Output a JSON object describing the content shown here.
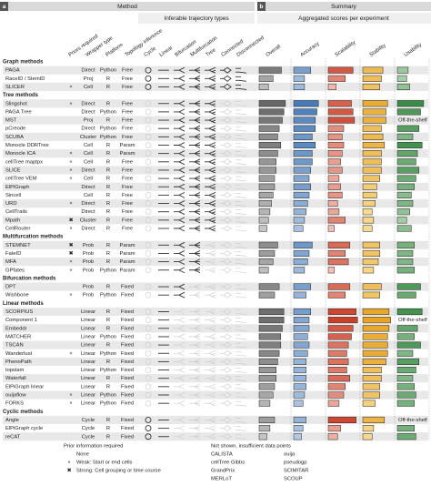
{
  "panels": {
    "a": {
      "label": "a",
      "title": "Method",
      "subtitle": "Inferable trajectory types"
    },
    "b": {
      "label": "b",
      "title": "Summary",
      "subtitle": "Aggregated scores per experiment"
    }
  },
  "columns": {
    "method": [
      "Priors required",
      "Wrapper type",
      "Platform",
      "Topology inference"
    ],
    "types": [
      "Cycle",
      "Linear",
      "Bifurcation",
      "Multifurcation",
      "Tree",
      "Connected",
      "Disconnected"
    ],
    "scores": [
      "Overall",
      "Accuracy",
      "Scalability",
      "Stability",
      "Usability"
    ]
  },
  "score_colors": [
    [
      "#ececec",
      "#505050"
    ],
    [
      "#e4edf8",
      "#1f5fa8"
    ],
    [
      "#fde3d9",
      "#c8361f"
    ],
    [
      "#fff5c8",
      "#e49a12"
    ],
    [
      "#e2f1dd",
      "#1d7a2d"
    ]
  ],
  "groups": [
    {
      "title": "Graph methods",
      "types": [
        1,
        1,
        1,
        1,
        1,
        1,
        1
      ],
      "rows": [
        {
          "name": "PAGA",
          "wrapper": "Direct",
          "platform": "Python",
          "topology": "Free",
          "scores": [
            0.72,
            0.55,
            0.8,
            0.65,
            0.35
          ]
        },
        {
          "name": "RaceID / StemID",
          "wrapper": "Proj",
          "platform": "R",
          "topology": "Free",
          "scores": [
            0.45,
            0.35,
            0.55,
            0.6,
            0.3
          ]
        },
        {
          "name": "SLICER",
          "prior": "×",
          "wrapper": "Cell",
          "platform": "R",
          "topology": "Free",
          "scores": [
            0.3,
            0.35,
            0.25,
            0.55,
            0.4
          ]
        }
      ]
    },
    {
      "title": "Tree methods",
      "types": [
        0,
        1,
        1,
        1,
        1,
        0,
        0
      ],
      "rows": [
        {
          "name": "Slingshot",
          "prior": "×",
          "wrapper": "Direct",
          "platform": "R",
          "topology": "Free",
          "scores": [
            0.85,
            0.8,
            0.75,
            0.8,
            0.85
          ]
        },
        {
          "name": "PAGA Tree",
          "wrapper": "Direct",
          "platform": "Python",
          "topology": "Free",
          "scores": [
            0.8,
            0.75,
            0.8,
            0.75,
            0.75
          ]
        },
        {
          "name": "MST",
          "wrapper": "Proj",
          "platform": "R",
          "topology": "Free",
          "scores": [
            0.75,
            0.7,
            0.85,
            0.75,
            null
          ],
          "note": "Off-the-shelf"
        },
        {
          "name": "pCreode",
          "wrapper": "Direct",
          "platform": "Python",
          "topology": "Free",
          "scores": [
            0.65,
            0.7,
            0.5,
            0.6,
            0.7
          ]
        },
        {
          "name": "SCUBA",
          "wrapper": "Cluster",
          "platform": "Python",
          "topology": "Free",
          "scores": [
            0.6,
            0.6,
            0.45,
            0.65,
            0.5
          ]
        },
        {
          "name": "Monocle DDRTree",
          "wrapper": "Cell",
          "platform": "R",
          "topology": "Param",
          "scores": [
            0.7,
            0.7,
            0.5,
            0.7,
            0.8
          ]
        },
        {
          "name": "Monocle ICA",
          "prior": "×",
          "wrapper": "Cell",
          "platform": "R",
          "topology": "Param",
          "scores": [
            0.6,
            0.6,
            0.45,
            0.6,
            0.65
          ]
        },
        {
          "name": "cellTree maptpx",
          "prior": "×",
          "wrapper": "Cell",
          "platform": "R",
          "topology": "Free",
          "scores": [
            0.55,
            0.6,
            0.4,
            0.6,
            0.6
          ]
        },
        {
          "name": "SLICE",
          "prior": "×",
          "wrapper": "Direct",
          "platform": "R",
          "topology": "Free",
          "scores": [
            0.55,
            0.55,
            0.45,
            0.6,
            0.7
          ]
        },
        {
          "name": "cellTree VEM",
          "prior": "×",
          "wrapper": "Cell",
          "platform": "R",
          "topology": "Free",
          "scores": [
            0.5,
            0.5,
            0.35,
            0.55,
            0.6
          ]
        },
        {
          "name": "ElPiGraph",
          "wrapper": "Direct",
          "platform": "R",
          "topology": "Free",
          "scores": [
            0.5,
            0.55,
            0.4,
            0.45,
            0.55
          ]
        },
        {
          "name": "Sincell",
          "wrapper": "Cell",
          "platform": "R",
          "topology": "Free",
          "scores": [
            0.45,
            0.5,
            0.45,
            0.45,
            0.45
          ]
        },
        {
          "name": "URD",
          "prior": "×",
          "wrapper": "Direct",
          "platform": "R",
          "topology": "Free",
          "scores": [
            0.4,
            0.45,
            0.3,
            0.4,
            0.5
          ]
        },
        {
          "name": "CellTrails",
          "wrapper": "Direct",
          "platform": "R",
          "topology": "Free",
          "scores": [
            0.35,
            0.4,
            0.35,
            0.3,
            0.4
          ]
        },
        {
          "name": "Mpath",
          "prior": "✖",
          "wrapper": "Cluster",
          "platform": "R",
          "topology": "Free",
          "scores": [
            0.3,
            0.35,
            0.55,
            0.35,
            0.3
          ]
        },
        {
          "name": "CellRouter",
          "prior": "×",
          "wrapper": "Direct",
          "platform": "R",
          "topology": "Free",
          "scores": [
            0.25,
            0.3,
            0.2,
            0.3,
            0.45
          ]
        }
      ]
    },
    {
      "title": "Multifurcation methods",
      "types": [
        0,
        1,
        1,
        1,
        0,
        0,
        0
      ],
      "rows": [
        {
          "name": "STEMNET",
          "prior": "✖",
          "wrapper": "Prob",
          "platform": "R",
          "topology": "Param",
          "scores": [
            0.6,
            0.6,
            0.7,
            0.55,
            0.55
          ]
        },
        {
          "name": "FateID",
          "prior": "✖",
          "wrapper": "Prob",
          "platform": "R",
          "topology": "Param",
          "scores": [
            0.5,
            0.5,
            0.55,
            0.55,
            0.5
          ]
        },
        {
          "name": "MFA",
          "prior": "×",
          "wrapper": "Prob",
          "platform": "R",
          "topology": "Param",
          "scores": [
            0.45,
            0.45,
            0.65,
            0.5,
            0.5
          ]
        },
        {
          "name": "GPfates",
          "prior": "×",
          "wrapper": "Prob",
          "platform": "Python",
          "topology": "Param",
          "scores": [
            0.3,
            0.35,
            0.2,
            0.35,
            0.55
          ]
        }
      ]
    },
    {
      "title": "Bifurcation methods",
      "types": [
        0,
        1,
        1,
        0,
        0,
        0,
        0
      ],
      "rows": [
        {
          "name": "DPT",
          "wrapper": "Prob",
          "platform": "R",
          "topology": "Fixed",
          "scores": [
            0.65,
            0.55,
            0.7,
            0.6,
            0.75
          ]
        },
        {
          "name": "Wishbone",
          "prior": "×",
          "wrapper": "Prob",
          "platform": "Python",
          "topology": "Fixed",
          "scores": [
            0.5,
            0.4,
            0.55,
            0.55,
            0.6
          ]
        }
      ]
    },
    {
      "title": "Linear methods",
      "types": [
        0,
        1,
        0,
        0,
        0,
        0,
        0
      ],
      "rows": [
        {
          "name": "SCORPIUS",
          "wrapper": "Linear",
          "platform": "R",
          "topology": "Fixed",
          "scores": [
            0.8,
            0.55,
            0.9,
            0.85,
            0.8
          ]
        },
        {
          "name": "Component 1",
          "wrapper": "Linear",
          "platform": "R",
          "topology": "Fixed",
          "scores": [
            0.8,
            0.5,
            0.95,
            0.9,
            null
          ],
          "note": "Off-the-shelf"
        },
        {
          "name": "Embeddr",
          "wrapper": "Linear",
          "platform": "R",
          "topology": "Fixed",
          "scores": [
            0.75,
            0.5,
            0.8,
            0.85,
            0.65
          ]
        },
        {
          "name": "MATCHER",
          "wrapper": "Linear",
          "platform": "Python",
          "topology": "Fixed",
          "scores": [
            0.7,
            0.45,
            0.75,
            0.8,
            0.55
          ]
        },
        {
          "name": "TSCAN",
          "wrapper": "Linear",
          "platform": "R",
          "topology": "Fixed",
          "scores": [
            0.7,
            0.5,
            0.65,
            0.8,
            0.75
          ]
        },
        {
          "name": "Wanderlust",
          "prior": "×",
          "wrapper": "Linear",
          "platform": "Python",
          "topology": "Fixed",
          "scores": [
            0.65,
            0.45,
            0.6,
            0.8,
            0.5
          ]
        },
        {
          "name": "PhenoPath",
          "wrapper": "Linear",
          "platform": "R",
          "topology": "Fixed",
          "scores": [
            0.6,
            0.4,
            0.65,
            0.75,
            0.7
          ]
        },
        {
          "name": "topslam",
          "wrapper": "Linear",
          "platform": "Python",
          "topology": "Fixed",
          "scores": [
            0.55,
            0.4,
            0.6,
            0.6,
            0.6
          ]
        },
        {
          "name": "Waterfall",
          "wrapper": "Linear",
          "platform": "R",
          "topology": "Fixed",
          "scores": [
            0.55,
            0.4,
            0.7,
            0.6,
            0.5
          ]
        },
        {
          "name": "ElPiGraph linear",
          "wrapper": "Linear",
          "platform": "R",
          "topology": "Fixed",
          "scores": [
            0.5,
            0.4,
            0.55,
            0.55,
            0.55
          ]
        },
        {
          "name": "ouijaflow",
          "prior": "×",
          "wrapper": "Linear",
          "platform": "Python",
          "topology": "Fixed",
          "scores": [
            0.45,
            0.35,
            0.5,
            0.55,
            0.6
          ]
        },
        {
          "name": "FORKS",
          "prior": "×",
          "wrapper": "Linear",
          "platform": "Python",
          "topology": "Fixed",
          "scores": [
            0.35,
            0.3,
            0.35,
            0.4,
            0.55
          ]
        }
      ]
    },
    {
      "title": "Cyclic methods",
      "types": [
        1,
        1,
        0,
        0,
        0,
        0,
        0
      ],
      "rows": [
        {
          "name": "Angle",
          "wrapper": "Cycle",
          "platform": "R",
          "topology": "Fixed",
          "scores": [
            0.5,
            0.4,
            0.9,
            0.7,
            null
          ],
          "note": "Off-the-shelf"
        },
        {
          "name": "ElPiGraph cycle",
          "wrapper": "Cycle",
          "platform": "R",
          "topology": "Fixed",
          "scores": [
            0.35,
            0.3,
            0.4,
            0.35,
            0.55
          ]
        },
        {
          "name": "reCAT",
          "wrapper": "Cycle",
          "platform": "R",
          "topology": "Fixed",
          "scores": [
            0.25,
            0.25,
            0.3,
            0.3,
            0.6
          ]
        }
      ]
    }
  ],
  "legend": {
    "title": "Prior information required",
    "items": [
      {
        "label": "None"
      },
      {
        "symbol": "×",
        "label": "Weak: Start or end cells"
      },
      {
        "symbol": "✖",
        "label": "Strong: Cell grouping or time course"
      }
    ]
  },
  "not_shown": {
    "title": "Not shown, insufficient data points",
    "names": [
      "CALISTA",
      "ouija",
      "cellTree Gibbs",
      "pseudogp",
      "GrandPrix",
      "SCIMITAR",
      "MERLoT",
      "SCOUP"
    ]
  }
}
